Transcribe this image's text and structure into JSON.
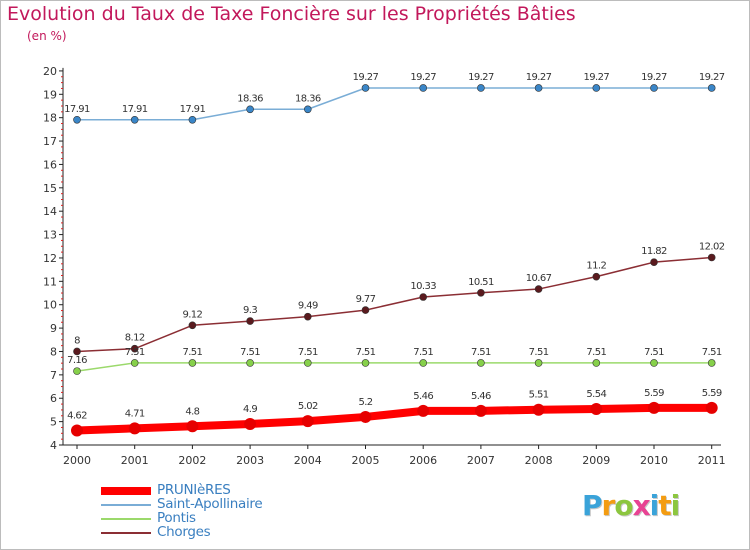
{
  "title": "Evolution du Taux de Taxe Foncière sur les Propriétés Bâties",
  "subtitle": "(en %)",
  "logo": {
    "chars": [
      "P",
      "r",
      "o",
      "x",
      "i",
      "t",
      "i"
    ],
    "colors": [
      "#3aa3d9",
      "#f39c12",
      "#8cc63f",
      "#e84393",
      "#3aa3d9",
      "#f39c12",
      "#8cc63f"
    ]
  },
  "chart_data": {
    "type": "line",
    "title": "Evolution du Taux de Taxe Foncière sur les Propriétés Bâties",
    "ylabel": "(en %)",
    "xlabel": "",
    "categories": [
      "2000",
      "2001",
      "2002",
      "2003",
      "2004",
      "2005",
      "2006",
      "2007",
      "2008",
      "2009",
      "2010",
      "2011"
    ],
    "ylim": [
      4,
      20
    ],
    "yticks": [
      4,
      5,
      6,
      7,
      8,
      9,
      10,
      11,
      12,
      13,
      14,
      15,
      16,
      17,
      18,
      19,
      20
    ],
    "grid": false,
    "legend_position": "bottom-left",
    "series": [
      {
        "name": "PRUNIèRES",
        "color": "#ff0000",
        "marker": "#e60000",
        "width": 8,
        "r": 6,
        "values": [
          4.62,
          4.71,
          4.8,
          4.9,
          5.02,
          5.2,
          5.46,
          5.46,
          5.51,
          5.54,
          5.59,
          5.59
        ],
        "labels": [
          "4.62",
          "4.71",
          "4.8",
          "4.9",
          "5.02",
          "5.2",
          "5.46",
          "5.46",
          "5.51",
          "5.54",
          "5.59",
          "5.59"
        ]
      },
      {
        "name": "Saint-Apollinaire",
        "color": "#7aadd6",
        "marker": "#3a86c8",
        "width": 1.5,
        "r": 3.5,
        "values": [
          17.91,
          17.91,
          17.91,
          18.36,
          18.36,
          19.27,
          19.27,
          19.27,
          19.27,
          19.27,
          19.27,
          19.27
        ],
        "labels": [
          "17.91",
          "17.91",
          "17.91",
          "18.36",
          "18.36",
          "19.27",
          "19.27",
          "19.27",
          "19.27",
          "19.27",
          "19.27",
          "19.27"
        ]
      },
      {
        "name": "Pontis",
        "color": "#9bd96b",
        "marker": "#86d04a",
        "width": 1.5,
        "r": 3.5,
        "values": [
          7.16,
          7.51,
          7.51,
          7.51,
          7.51,
          7.51,
          7.51,
          7.51,
          7.51,
          7.51,
          7.51,
          7.51
        ],
        "labels": [
          "7.16",
          "7.51",
          "7.51",
          "7.51",
          "7.51",
          "7.51",
          "7.51",
          "7.51",
          "7.51",
          "7.51",
          "7.51",
          "7.51"
        ]
      },
      {
        "name": "Chorges",
        "color": "#8b2e34",
        "marker": "#5a1a1e",
        "width": 1.5,
        "r": 3.5,
        "values": [
          8,
          8.12,
          9.12,
          9.3,
          9.49,
          9.77,
          10.33,
          10.51,
          10.67,
          11.2,
          11.82,
          12.02
        ],
        "labels": [
          "8",
          "8.12",
          "9.12",
          "9.3",
          "9.49",
          "9.77",
          "10.33",
          "10.51",
          "10.67",
          "11.2",
          "11.82",
          "12.02"
        ]
      }
    ]
  }
}
